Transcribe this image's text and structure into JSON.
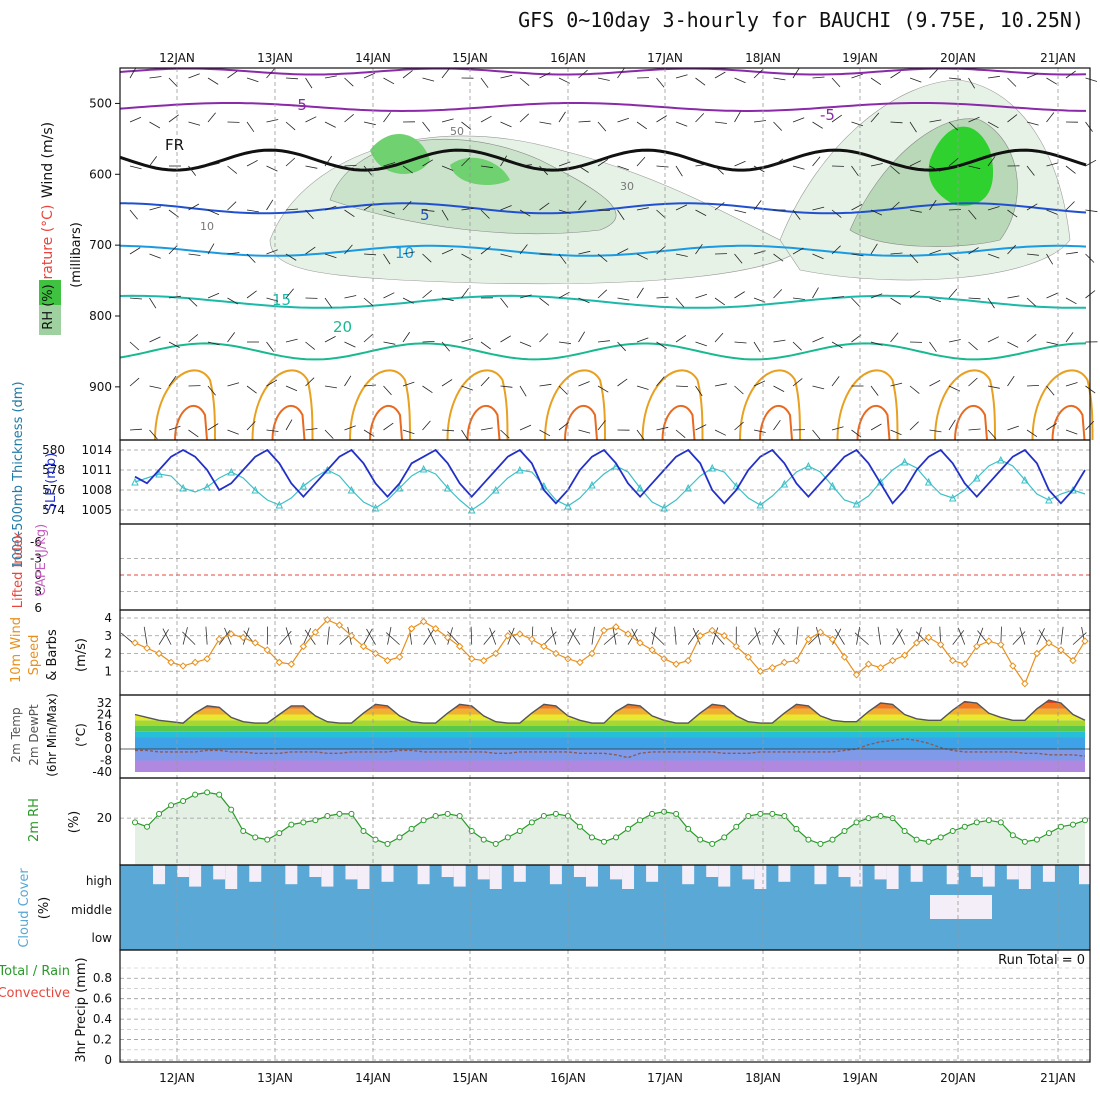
{
  "title": "GFS 0~10day 3-hourly for BAUCHI (9.75E, 10.25N)",
  "run_total": "Run Total = 0",
  "colors": {
    "wind_label": "#000000",
    "temp_label": "#e8463c",
    "temp_word": "#5b36c9",
    "rh_box": "#3fc23f",
    "thickness": "#1f7aa8",
    "slp": "#2230c8",
    "lifted": "#e8463c",
    "cape": "#c560c0",
    "wind10": "#e8901e",
    "temp2m": "#555555",
    "rh2m": "#2a9a2a",
    "cloud": "#5aa8d6",
    "precip_total": "#2a9a2a",
    "precip_conv": "#e8463c"
  },
  "chart_data": [
    {
      "panel": "upper-air",
      "type": "heatmap",
      "x": [
        "12JAN",
        "13JAN",
        "14JAN",
        "15JAN",
        "16JAN",
        "17JAN",
        "18JAN",
        "19JAN",
        "20JAN",
        "21JAN"
      ],
      "yticks": [
        500,
        600,
        700,
        800,
        900
      ],
      "ylabel_parts": [
        "Wind (m/s)",
        "Temperature (°C)",
        "RH (%)",
        "(millibars)"
      ],
      "isotherm_labels": [
        "-5",
        "FR",
        "-5",
        "5",
        "10",
        "15",
        "20"
      ],
      "rh_labels": [
        "10",
        "30",
        "50"
      ]
    },
    {
      "panel": "thickness-slp",
      "type": "line",
      "ylabel_left": "1000-500mb Thickness (dm)",
      "ylabel_right": "SLP (mb)",
      "yticks_left": [
        574,
        576,
        578,
        580
      ],
      "yticks_right": [
        1005,
        1008,
        1011,
        1014
      ],
      "series": [
        {
          "name": "SLP",
          "values": [
            1010,
            1009,
            1011,
            1013,
            1014,
            1013,
            1011,
            1008,
            1009,
            1011,
            1013,
            1014,
            1012,
            1009,
            1007,
            1009,
            1011,
            1013,
            1014,
            1012,
            1009,
            1007,
            1009,
            1012,
            1013,
            1014,
            1012,
            1009,
            1007,
            1009,
            1011,
            1013,
            1014,
            1012,
            1008,
            1006,
            1008,
            1011,
            1013,
            1014,
            1012,
            1009,
            1007,
            1009,
            1011,
            1013,
            1014,
            1012,
            1008,
            1006,
            1008,
            1011,
            1013,
            1014,
            1012,
            1009,
            1007,
            1009,
            1011,
            1013,
            1014,
            1012,
            1009,
            1006,
            1008,
            1011,
            1013,
            1014,
            1012,
            1009,
            1007,
            1009,
            1011,
            1013,
            1014,
            1012,
            1008,
            1006,
            1008,
            1011
          ]
        },
        {
          "name": "Thickness",
          "values": [
            576.8,
            577.2,
            577.6,
            577.4,
            576.2,
            575.8,
            576.3,
            577.2,
            577.8,
            577.2,
            576.0,
            575.0,
            574.5,
            575.2,
            576.4,
            577.3,
            578.0,
            577.4,
            576.0,
            574.8,
            574.2,
            575.0,
            576.2,
            577.4,
            578.1,
            577.6,
            576.2,
            575.0,
            574.0,
            574.8,
            576.0,
            577.2,
            578.0,
            577.8,
            576.4,
            575.0,
            574.4,
            575.2,
            576.5,
            577.6,
            578.4,
            577.8,
            576.2,
            574.8,
            574.2,
            575.0,
            576.2,
            577.4,
            578.2,
            577.8,
            576.4,
            575.2,
            574.5,
            575.4,
            576.6,
            577.8,
            578.4,
            577.8,
            576.4,
            575.0,
            574.6,
            575.4,
            576.8,
            578.0,
            578.8,
            578.2,
            576.8,
            575.6,
            575.2,
            576.0,
            577.2,
            578.4,
            579.0,
            578.4,
            577.0,
            575.6,
            575.0,
            575.6,
            576.0,
            575.6
          ]
        }
      ]
    },
    {
      "panel": "stability",
      "type": "line",
      "ylabel_left": "Lifted Index",
      "ylabel_right": "CAPE (J/kg)",
      "yticks": [
        "-6",
        "-3",
        "0",
        "3",
        "6"
      ],
      "series": [
        {
          "name": "Lifted Index",
          "values": []
        }
      ]
    },
    {
      "panel": "wind10m",
      "type": "line",
      "ylabel_parts": [
        "10m Wind",
        "Speed",
        "& Barbs",
        "(m/s)"
      ],
      "yticks": [
        1,
        2,
        3,
        4
      ],
      "series": [
        {
          "name": "10m Wind Speed",
          "values": [
            2.6,
            2.3,
            2.0,
            1.5,
            1.3,
            1.5,
            1.7,
            2.8,
            3.1,
            2.9,
            2.6,
            2.2,
            1.5,
            1.4,
            2.4,
            3.2,
            3.9,
            3.6,
            3.0,
            2.4,
            2.0,
            1.6,
            1.8,
            3.4,
            3.8,
            3.4,
            2.9,
            2.4,
            1.7,
            1.6,
            2.0,
            3.0,
            3.1,
            2.8,
            2.4,
            2.0,
            1.7,
            1.5,
            2.0,
            3.3,
            3.5,
            3.1,
            2.6,
            2.2,
            1.7,
            1.4,
            1.6,
            3.0,
            3.3,
            3.0,
            2.4,
            1.8,
            1.0,
            1.2,
            1.5,
            1.6,
            2.8,
            3.2,
            2.8,
            1.8,
            0.8,
            1.4,
            1.2,
            1.6,
            1.9,
            2.6,
            2.9,
            2.5,
            1.6,
            1.4,
            2.4,
            2.7,
            2.5,
            1.3,
            0.3,
            2.0,
            2.6,
            2.2,
            1.6,
            2.7
          ]
        }
      ]
    },
    {
      "panel": "temp2m",
      "type": "area",
      "ylabel_parts": [
        "2m Temp",
        "2m DewPt",
        "(6hr Min/Max)",
        "(°C)"
      ],
      "yticks": [
        "-40",
        "-8",
        "0",
        "8",
        "16",
        "24",
        "32"
      ],
      "series": [
        {
          "name": "2m Temp",
          "values": [
            24,
            22,
            20,
            19,
            18,
            25,
            30,
            29,
            22,
            19,
            18,
            18,
            24,
            30,
            30,
            23,
            19,
            18,
            18,
            25,
            31,
            30,
            23,
            19,
            18,
            18,
            25,
            31,
            30,
            23,
            19,
            18,
            18,
            25,
            31,
            30,
            23,
            20,
            18,
            18,
            26,
            31,
            30,
            23,
            20,
            18,
            18,
            25,
            31,
            30,
            23,
            19,
            18,
            18,
            25,
            31,
            30,
            23,
            20,
            19,
            19,
            26,
            32,
            31,
            24,
            21,
            20,
            20,
            27,
            33,
            32,
            25,
            22,
            20,
            20,
            28,
            34,
            32,
            24,
            20
          ]
        },
        {
          "name": "2m DewPt",
          "values": [
            -1,
            -1,
            -2,
            -2,
            -2,
            -2,
            -1,
            -1,
            -2,
            -2,
            -3,
            -3,
            -3,
            -2,
            -2,
            -2,
            -3,
            -3,
            -2,
            -2,
            -2,
            -2,
            -1,
            -1,
            -2,
            -2,
            -2,
            -2,
            -2,
            -2,
            -3,
            -3,
            -2,
            -2,
            -2,
            -2,
            -2,
            -3,
            -3,
            -3,
            -4,
            -6,
            -3,
            -2,
            -2,
            -2,
            -2,
            -2,
            -2,
            -3,
            -3,
            -3,
            -2,
            -2,
            -2,
            -2,
            -2,
            -2,
            -2,
            -1,
            0,
            3,
            5,
            6,
            7,
            6,
            4,
            1,
            -1,
            -2,
            -2,
            -2,
            -2,
            -2,
            -3,
            -3,
            -4,
            -4,
            -4,
            -5
          ]
        }
      ]
    },
    {
      "panel": "rh2m",
      "type": "area",
      "ylabel": "2m RH",
      "yunit": "(%)",
      "yticks": [
        20
      ],
      "series": [
        {
          "name": "2m RH",
          "values": [
            18,
            16,
            22,
            26,
            28,
            31,
            32,
            31,
            24,
            14,
            11,
            10,
            13,
            17,
            18,
            19,
            21,
            22,
            22,
            14,
            10,
            8,
            11,
            15,
            19,
            21,
            22,
            21,
            14,
            10,
            8,
            11,
            14,
            18,
            21,
            22,
            21,
            16,
            11,
            9,
            11,
            15,
            19,
            22,
            23,
            22,
            15,
            10,
            8,
            11,
            16,
            21,
            22,
            22,
            21,
            15,
            10,
            8,
            10,
            14,
            18,
            20,
            21,
            20,
            14,
            10,
            9,
            11,
            14,
            16,
            18,
            19,
            18,
            12,
            9,
            10,
            13,
            16,
            17,
            19
          ]
        }
      ]
    },
    {
      "panel": "cloud",
      "type": "heatmap",
      "ylabel": "Cloud Cover",
      "yunit": "(%)",
      "categories": [
        "high",
        "middle",
        "low"
      ]
    },
    {
      "panel": "precip",
      "type": "bar",
      "ylabel_parts": [
        "Total / Rain",
        "Convective",
        "3hr Precip (mm)"
      ],
      "yticks": [
        "0",
        "0.2",
        "0.4",
        "0.6",
        "0.8"
      ],
      "values": []
    }
  ]
}
